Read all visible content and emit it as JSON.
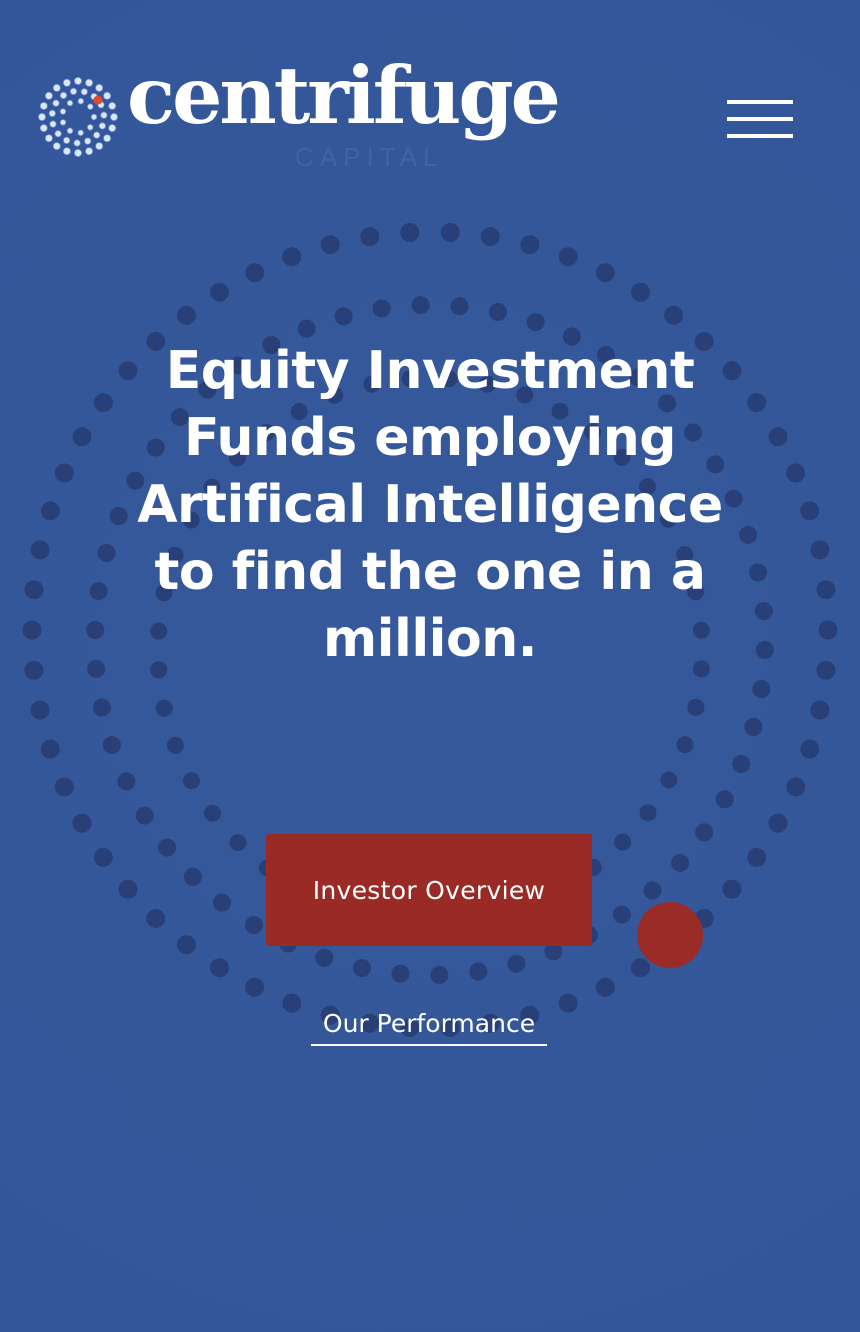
{
  "app": {
    "brand_name": "centrifuge",
    "brand_sub": "CAPITAL"
  },
  "header": {
    "menu_icon": "hamburger-menu-icon"
  },
  "hero": {
    "headline": "Equity Investment Funds employing Artifical Intelligence to find the one in a million.",
    "primary_cta_label": "Investor Overview",
    "secondary_cta_label": "Our Performance"
  },
  "colors": {
    "background": "#35589a",
    "dot": "#283f78",
    "accent_red": "#9a2a25",
    "accent_dot": "#9b2b27",
    "text": "#ffffff"
  }
}
